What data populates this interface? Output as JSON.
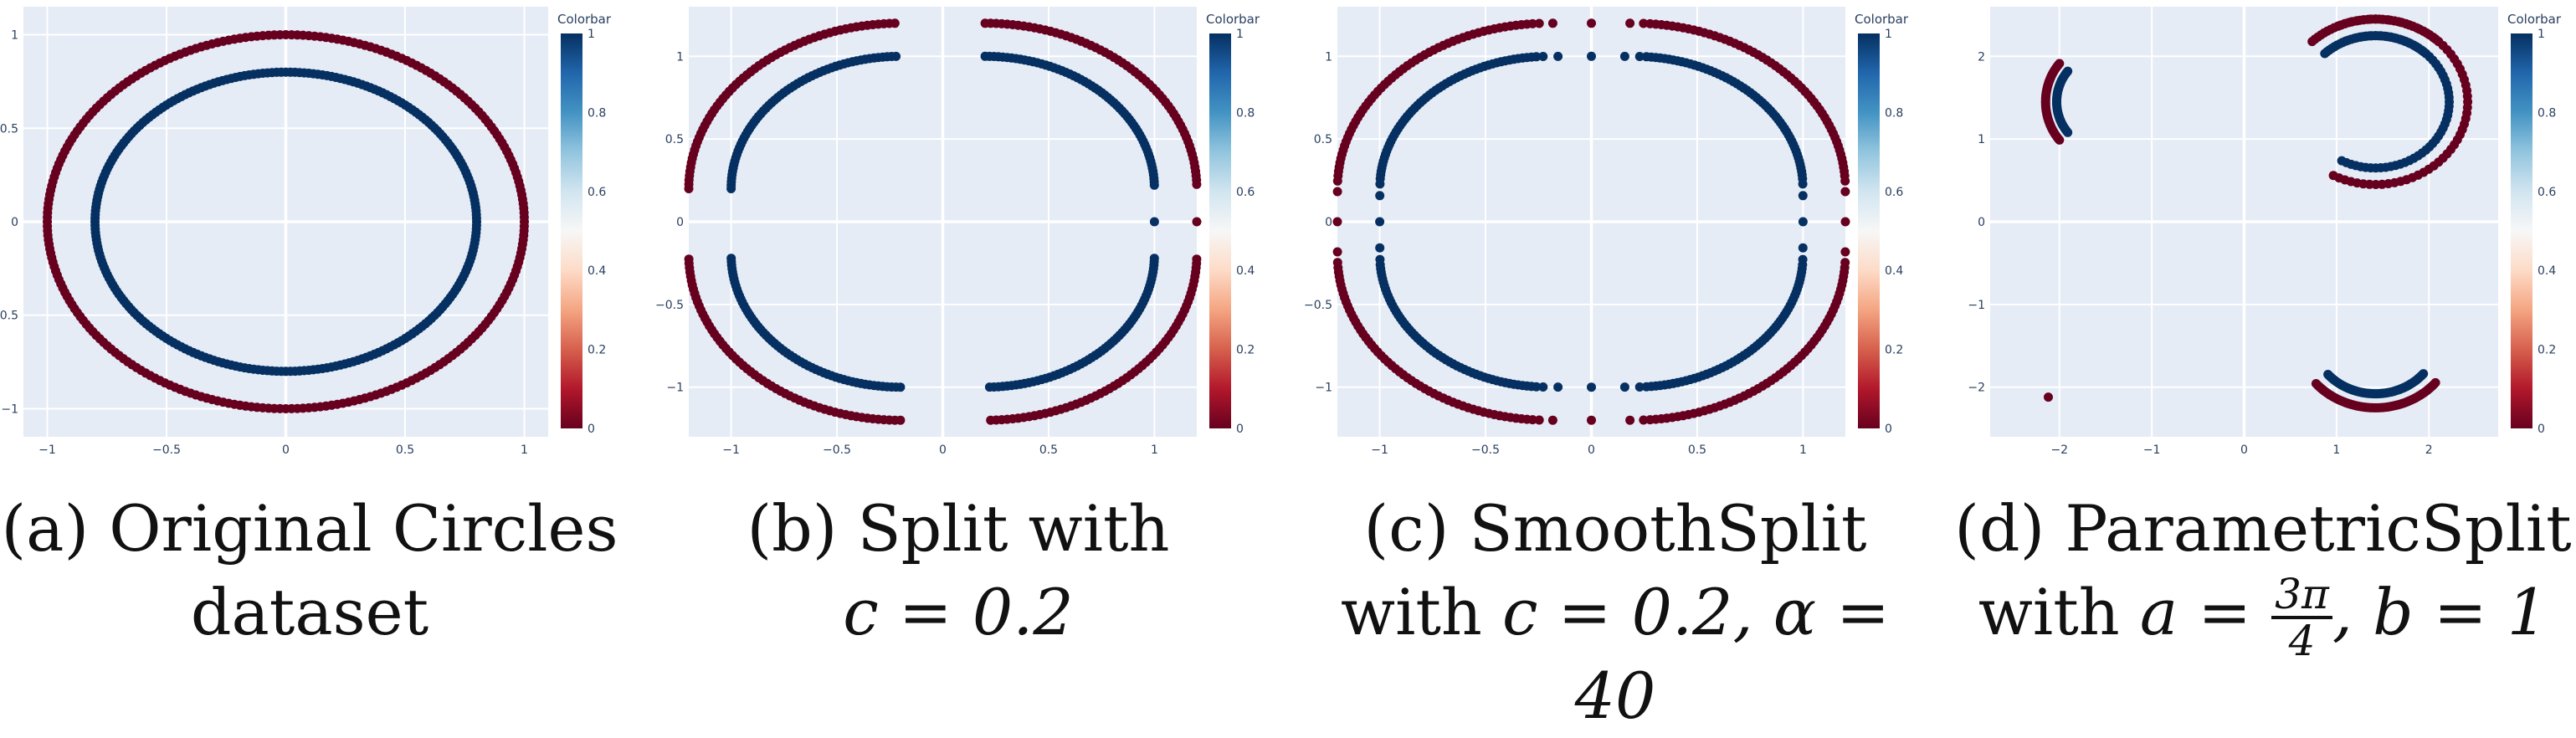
{
  "colors": {
    "blue": "#053061",
    "red": "#67001f",
    "plot_bg": "#e5ecf6",
    "grid": "#ffffff"
  },
  "colorbar": {
    "title": "Colorbar",
    "ticks": [
      "0",
      "0.2",
      "0.4",
      "0.6",
      "0.8",
      "1"
    ],
    "colorscale": [
      "#67001f",
      "#b2182b",
      "#d6604d",
      "#f4a582",
      "#fddbc7",
      "#f7f7f7",
      "#d1e5f0",
      "#92c5de",
      "#4393c3",
      "#2166ac",
      "#053061"
    ]
  },
  "captions": [
    {
      "line1": "(a) Original Circles",
      "line2": "dataset"
    },
    {
      "line1": "(b) Split with",
      "line2": "c = 0.2"
    },
    {
      "line1": "(c) SmoothSplit",
      "line2_text": "with ",
      "line2_math": "c = 0.2, α = 40"
    },
    {
      "line1": "(d) ParametricSplit",
      "line2_text": "with ",
      "line2_math_a": "a = ",
      "frac_num": "3π",
      "frac_den": "4",
      "line2_math_b": ", b = 1"
    }
  ],
  "chart_data": [
    {
      "type": "scatter",
      "title": "",
      "xlim": [
        -1.1,
        1.1
      ],
      "ylim": [
        -1.15,
        1.15
      ],
      "xticks": [
        -1,
        -0.5,
        0,
        0.5,
        1
      ],
      "xtick_labels": [
        "−1",
        "−0.5",
        "0",
        "0.5",
        "1"
      ],
      "yticks": [
        -1,
        -0.5,
        0,
        0.5,
        1
      ],
      "ytick_labels": [
        "−1",
        "−0.5",
        "0",
        "0.5",
        "1"
      ],
      "series": [
        {
          "color_value": 0,
          "shape": "circle",
          "radius": 1.0
        },
        {
          "color_value": 1,
          "shape": "circle",
          "radius": 0.8
        }
      ]
    },
    {
      "type": "scatter",
      "title": "",
      "xlim": [
        -1.2,
        1.2
      ],
      "ylim": [
        -1.3,
        1.3
      ],
      "xticks": [
        -1,
        -0.5,
        0,
        0.5,
        1
      ],
      "xtick_labels": [
        "−1",
        "−0.5",
        "0",
        "0.5",
        "1"
      ],
      "yticks": [
        -1,
        -0.5,
        0,
        0.5,
        1
      ],
      "ytick_labels": [
        "−1",
        "−0.5",
        "0",
        "0.5",
        "1"
      ],
      "series": [
        {
          "color_value": 0,
          "shape": "split",
          "radius": 1.0,
          "c": 0.2
        },
        {
          "color_value": 1,
          "shape": "split",
          "radius": 0.8,
          "c": 0.2
        }
      ]
    },
    {
      "type": "scatter",
      "title": "",
      "xlim": [
        -1.2,
        1.2
      ],
      "ylim": [
        -1.3,
        1.3
      ],
      "xticks": [
        -1,
        -0.5,
        0,
        0.5,
        1
      ],
      "xtick_labels": [
        "−1",
        "−0.5",
        "0",
        "0.5",
        "1"
      ],
      "yticks": [
        -1,
        -0.5,
        0,
        0.5,
        1
      ],
      "ytick_labels": [
        "−1",
        "−0.5",
        "0",
        "0.5",
        "1"
      ],
      "series": [
        {
          "color_value": 0,
          "shape": "smoothsplit",
          "radius": 1.0,
          "c": 0.2,
          "alpha": 40
        },
        {
          "color_value": 1,
          "shape": "smoothsplit",
          "radius": 0.8,
          "c": 0.2,
          "alpha": 40
        }
      ]
    },
    {
      "type": "scatter",
      "title": "",
      "xlim": [
        -2.75,
        2.75
      ],
      "ylim": [
        -2.6,
        2.6
      ],
      "xticks": [
        -2,
        -1,
        0,
        1,
        2
      ],
      "xtick_labels": [
        "−2",
        "−1",
        "0",
        "1",
        "2"
      ],
      "yticks": [
        -2,
        -1,
        0,
        1,
        2
      ],
      "ytick_labels": [
        "−2",
        "−1",
        "0",
        "1",
        "2"
      ],
      "series": [
        {
          "color_value": 0,
          "shape": "parametric",
          "radius": 1.0,
          "a": 2.356,
          "b": 1
        },
        {
          "color_value": 1,
          "shape": "parametric",
          "radius": 0.8,
          "a": 2.356,
          "b": 1
        }
      ]
    }
  ]
}
